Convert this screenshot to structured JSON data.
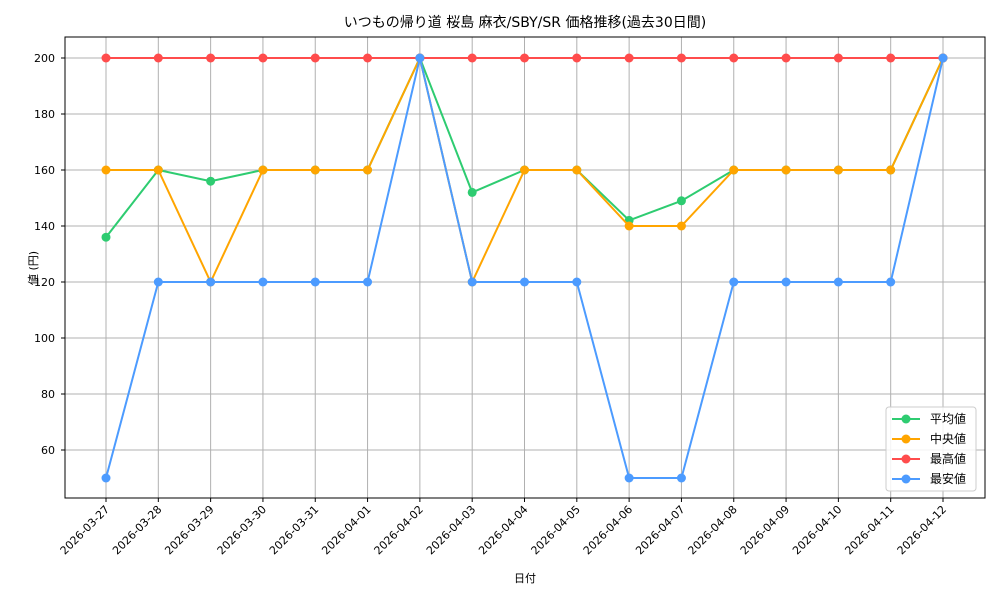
{
  "chart_data": {
    "type": "line",
    "title": "いつもの帰り道 桜島 麻衣/SBY/SR 価格推移(過去30日間)",
    "xlabel": "日付",
    "ylabel": "値 (円)",
    "ylim": [
      43,
      207
    ],
    "yticks": [
      60,
      80,
      100,
      120,
      140,
      160,
      180,
      200
    ],
    "grid": true,
    "legend_position": "lower right",
    "x": [
      "2026-03-27",
      "2026-03-28",
      "2026-03-29",
      "2026-03-30",
      "2026-03-31",
      "2026-04-01",
      "2026-04-02",
      "2026-04-03",
      "2026-04-04",
      "2026-04-05",
      "2026-04-06",
      "2026-04-07",
      "2026-04-08",
      "2026-04-09",
      "2026-04-10",
      "2026-04-11",
      "2026-04-12"
    ],
    "series": [
      {
        "name": "平均値",
        "color": "#2ecc71",
        "values": [
          136,
          160,
          156,
          160,
          160,
          160,
          200,
          152,
          160,
          160,
          142,
          149,
          160,
          160,
          160,
          160,
          200
        ]
      },
      {
        "name": "中央値",
        "color": "#ffa500",
        "values": [
          160,
          160,
          120,
          160,
          160,
          160,
          200,
          120,
          160,
          160,
          140,
          140,
          160,
          160,
          160,
          160,
          200
        ]
      },
      {
        "name": "最高値",
        "color": "#ff4c4c",
        "values": [
          200,
          200,
          200,
          200,
          200,
          200,
          200,
          200,
          200,
          200,
          200,
          200,
          200,
          200,
          200,
          200,
          200
        ]
      },
      {
        "name": "最安値",
        "color": "#4c9bff",
        "values": [
          50,
          120,
          120,
          120,
          120,
          120,
          200,
          120,
          120,
          120,
          50,
          50,
          120,
          120,
          120,
          120,
          200
        ]
      }
    ]
  }
}
